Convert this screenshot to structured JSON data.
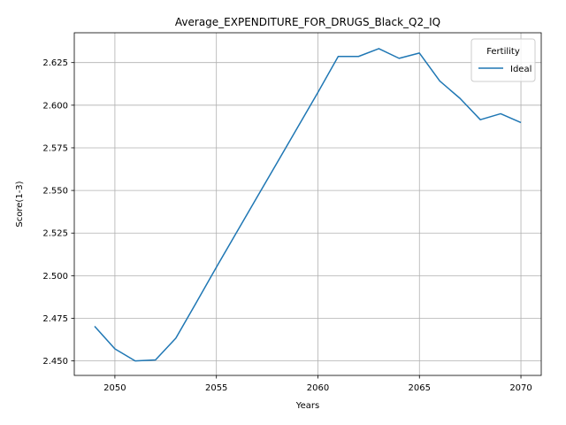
{
  "chart_data": {
    "type": "line",
    "title": "Average_EXPENDITURE_FOR_DRUGS_Black_Q2_IQ",
    "xlabel": "Years",
    "ylabel": "Score(1-3)",
    "xlim": [
      2048.0,
      2071.0
    ],
    "ylim": [
      2.4415,
      2.6425
    ],
    "xticks": [
      2050,
      2055,
      2060,
      2065,
      2070
    ],
    "yticks": [
      2.45,
      2.475,
      2.5,
      2.525,
      2.55,
      2.575,
      2.6,
      2.625
    ],
    "xtick_labels": [
      "2050",
      "2055",
      "2060",
      "2065",
      "2070"
    ],
    "ytick_labels": [
      "2.450",
      "2.475",
      "2.500",
      "2.525",
      "2.550",
      "2.575",
      "2.600",
      "2.625"
    ],
    "grid": true,
    "legend": {
      "title": "Fertility",
      "position": "top-right"
    },
    "x": [
      2049,
      2050,
      2051,
      2052,
      2053,
      2054,
      2055,
      2056,
      2057,
      2058,
      2059,
      2060,
      2061,
      2062,
      2063,
      2064,
      2065,
      2066,
      2067,
      2068,
      2069,
      2070
    ],
    "series": [
      {
        "name": "Ideal",
        "color": "#1f77b4",
        "values": [
          2.4703,
          2.4571,
          2.45,
          2.4506,
          2.4633,
          2.484,
          2.505,
          2.5255,
          2.546,
          2.5665,
          2.587,
          2.6075,
          2.6286,
          2.6286,
          2.6332,
          2.6275,
          2.6306,
          2.6142,
          2.604,
          2.5915,
          2.595,
          2.5898
        ]
      }
    ]
  }
}
